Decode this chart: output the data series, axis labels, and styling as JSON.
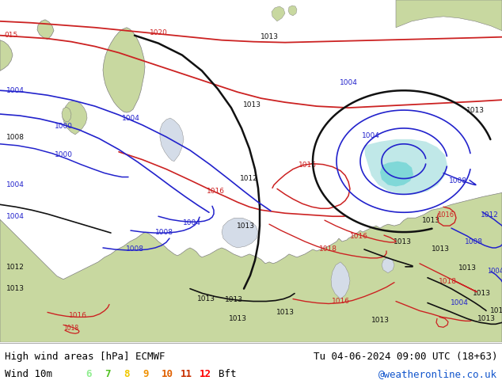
{
  "title_left_line1": "High wind areas [hPa] ECMWF",
  "title_left_line2": "Wind 10m",
  "title_right_line1": "Tu 04-06-2024 09:00 UTC (18+63)",
  "title_right_line2": "@weatheronline.co.uk",
  "legend_numbers": [
    "6",
    "7",
    "8",
    "9",
    "10",
    "11",
    "12"
  ],
  "legend_colors": [
    "#90ee90",
    "#50c020",
    "#f0c800",
    "#f09000",
    "#e06000",
    "#c83000",
    "#ff0000"
  ],
  "legend_suffix": "Bft",
  "sea_color": "#d4dce8",
  "land_color": "#c8d8a0",
  "light_green": "#b8e890",
  "highlight_green": "#90e890",
  "cyan_area": "#c0e8e8",
  "isobar_blue": "#2222cc",
  "isobar_red": "#cc2222",
  "isobar_black": "#111111",
  "border_color": "#808080",
  "figsize": [
    6.34,
    4.9
  ],
  "dpi": 100
}
